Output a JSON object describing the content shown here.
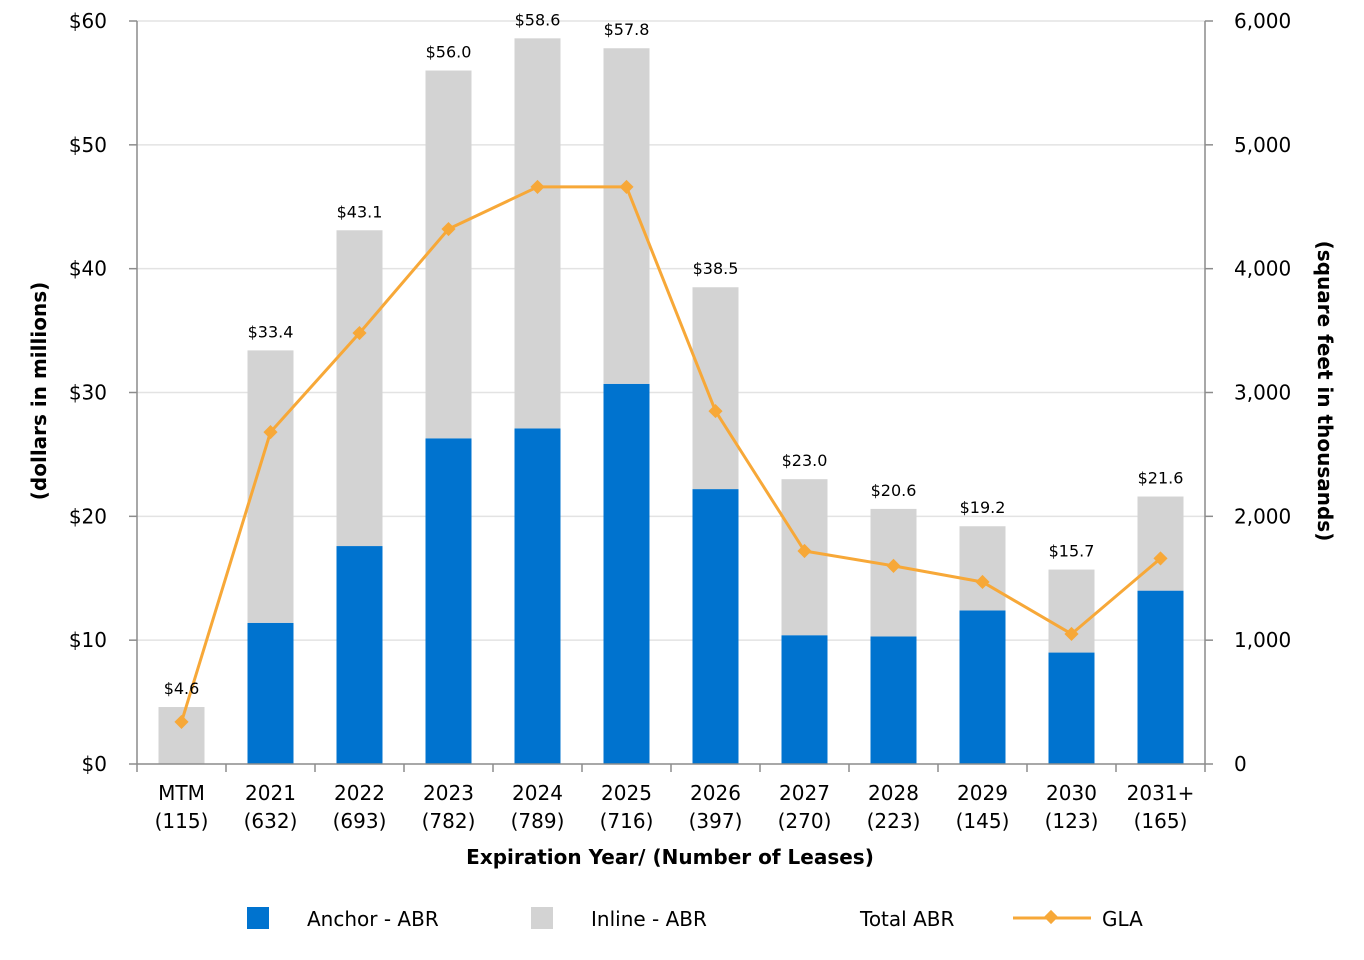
{
  "chart_data": {
    "type": "bar",
    "stacked": true,
    "categories": [
      "MTM",
      "2021",
      "2022",
      "2023",
      "2024",
      "2025",
      "2026",
      "2027",
      "2028",
      "2029",
      "2030",
      "2031+"
    ],
    "lease_counts": [
      "(115)",
      "(632)",
      "(693)",
      "(782)",
      "(789)",
      "(716)",
      "(397)",
      "(270)",
      "(223)",
      "(145)",
      "(123)",
      "(165)"
    ],
    "series": [
      {
        "name": "Anchor - ABR",
        "axis": "left",
        "color": "#0073CF",
        "values": [
          0,
          11.4,
          17.6,
          26.3,
          27.1,
          30.7,
          22.2,
          10.4,
          10.3,
          12.4,
          9.0,
          14.0
        ]
      },
      {
        "name": "Inline - ABR",
        "axis": "left",
        "color": "#D3D3D3",
        "values": [
          4.6,
          22.0,
          25.5,
          29.7,
          31.5,
          27.1,
          16.3,
          12.6,
          10.3,
          6.8,
          6.7,
          7.6
        ]
      },
      {
        "name": "GLA",
        "axis": "right",
        "type": "line",
        "color": "#F7A838",
        "values": [
          340,
          2680,
          3480,
          4320,
          4660,
          4660,
          2850,
          1720,
          1600,
          1470,
          1050,
          1660
        ]
      }
    ],
    "total_abr": {
      "name": "Total ABR",
      "labels": [
        "$4.6",
        "$33.4",
        "$43.1",
        "$56.0",
        "$58.6",
        "$57.8",
        "$38.5",
        "$23.0",
        "$20.6",
        "$19.2",
        "$15.7",
        "$21.6"
      ]
    },
    "xlabel": "Expiration Year/ (Number of Leases)",
    "ylabel": "(dollars in millions)",
    "y2label": "(square feet in thousands)",
    "ylim": [
      0,
      60
    ],
    "y2lim": [
      0,
      6000
    ],
    "yticks": [
      "$0",
      "$10",
      "$20",
      "$30",
      "$40",
      "$50",
      "$60"
    ],
    "y2ticks": [
      "0",
      "1,000",
      "2,000",
      "3,000",
      "4,000",
      "5,000",
      "6,000"
    ],
    "grid": true,
    "legend_position": "bottom",
    "colors": {
      "grid": "#E3E3E3",
      "axis": "#8C8C8C"
    }
  }
}
